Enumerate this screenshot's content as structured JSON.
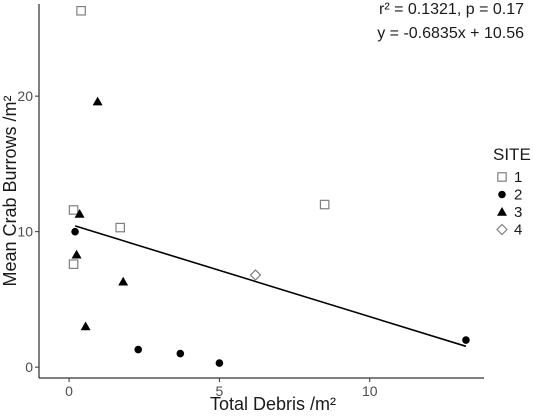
{
  "chart_data": {
    "type": "scatter",
    "xlabel": "Total Debris /m²",
    "ylabel": "Mean Crab Burrows /m²",
    "xlim": [
      -1,
      13.8
    ],
    "ylim": [
      -0.8,
      26.8
    ],
    "x_ticks": [
      0,
      5,
      10
    ],
    "y_ticks": [
      0,
      10,
      20
    ],
    "grid": false,
    "legend_title": "SITE",
    "legend_position": "right",
    "series": [
      {
        "name": "1",
        "marker": "open-square",
        "color": "#7f7f7f",
        "points": [
          [
            0.4,
            26.3
          ],
          [
            0.15,
            11.6
          ],
          [
            1.7,
            10.3
          ],
          [
            0.15,
            7.6
          ],
          [
            8.5,
            12.0
          ]
        ]
      },
      {
        "name": "2",
        "marker": "filled-circle",
        "color": "#000000",
        "points": [
          [
            0.2,
            10.0
          ],
          [
            2.3,
            1.3
          ],
          [
            3.7,
            1.0
          ],
          [
            5.0,
            0.3
          ],
          [
            13.2,
            2.0
          ]
        ]
      },
      {
        "name": "3",
        "marker": "filled-triangle",
        "color": "#000000",
        "points": [
          [
            0.95,
            19.6
          ],
          [
            0.35,
            11.3
          ],
          [
            0.25,
            8.3
          ],
          [
            1.8,
            6.3
          ],
          [
            0.55,
            3.0
          ]
        ]
      },
      {
        "name": "4",
        "marker": "open-diamond",
        "color": "#7f7f7f",
        "points": [
          [
            6.2,
            6.8
          ]
        ]
      }
    ],
    "fit_line": {
      "slope": -0.6835,
      "intercept": 10.56,
      "x_range": [
        0.2,
        13.2
      ]
    },
    "annotations": [
      "r² = 0.1321, p = 0.17",
      "y = -0.6835x + 10.56"
    ]
  }
}
